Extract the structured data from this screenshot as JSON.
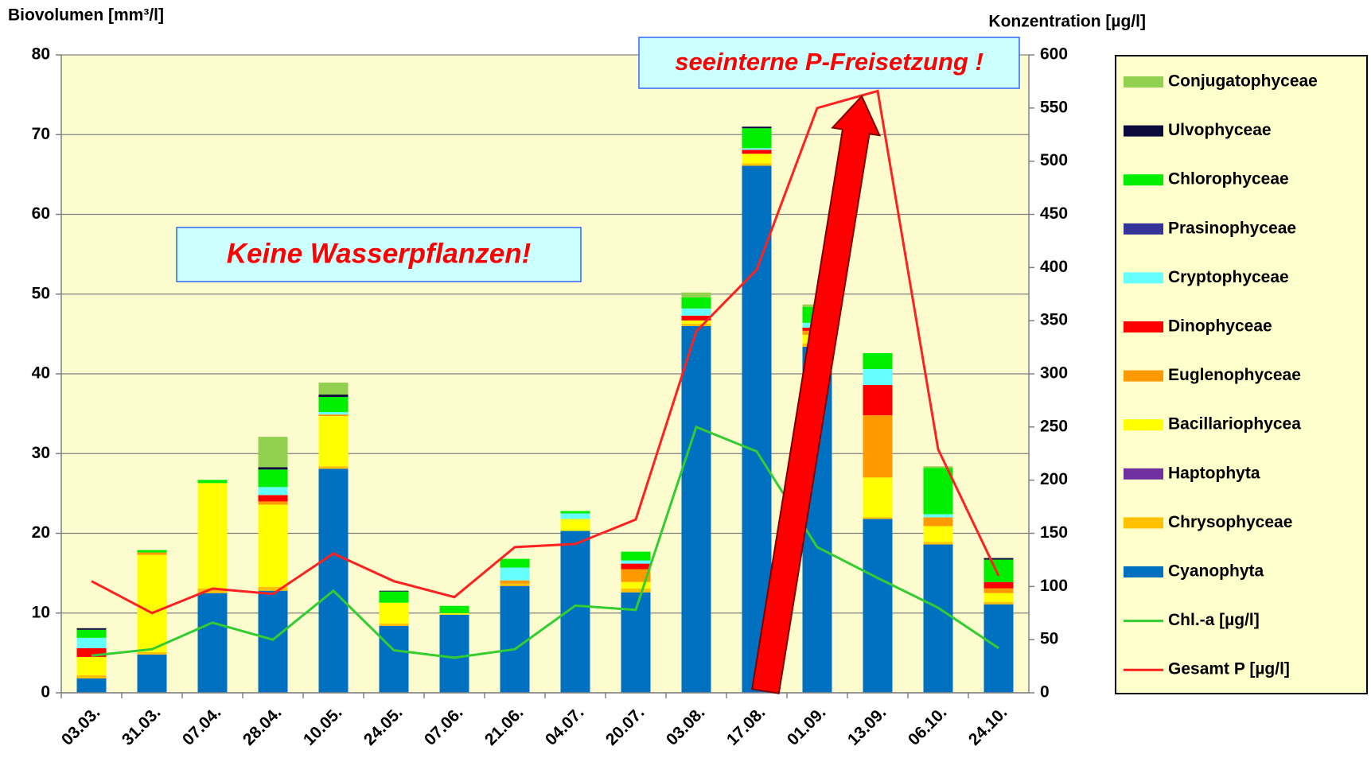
{
  "chart_data": {
    "type": "bar",
    "y_axis_label": "Biovolumen [mm³/l]",
    "y2_axis_label": "Konzentration  [µg/l]",
    "annotations": [
      "Keine Wasserpflanzen!",
      "seeinterne P-Freisetzung !"
    ],
    "categories": [
      "03.03.",
      "31.03.",
      "07.04.",
      "28.04.",
      "10.05.",
      "24.05.",
      "07.06.",
      "21.06.",
      "04.07.",
      "20.07.",
      "03.08.",
      "17.08.",
      "01.09.",
      "13.09.",
      "06.10.",
      "24.10."
    ],
    "ylim": [
      0,
      80
    ],
    "yticks": [
      0,
      10,
      20,
      30,
      40,
      50,
      60,
      70,
      80
    ],
    "y2lim": [
      0,
      600
    ],
    "y2ticks": [
      0,
      50,
      100,
      150,
      200,
      250,
      300,
      350,
      400,
      450,
      500,
      550,
      600
    ],
    "grid": true,
    "stacked": true,
    "legend": "right",
    "series": [
      {
        "name": "Cyanophyta",
        "color": "#0070c0",
        "values": [
          1.8,
          4.8,
          12.5,
          12.8,
          28.1,
          8.4,
          9.8,
          13.4,
          20.3,
          12.6,
          46.0,
          66.1,
          43.4,
          21.8,
          18.6,
          11.1
        ]
      },
      {
        "name": "Chrysophyceae",
        "color": "#ffc000",
        "values": [
          0.4,
          0.3,
          0.6,
          0.5,
          0.3,
          0.3,
          0,
          0.3,
          0,
          0.5,
          0.3,
          0.3,
          0.4,
          0.2,
          0.3,
          0.3
        ]
      },
      {
        "name": "Haptophyta",
        "color": "#7030a0",
        "values": [
          0,
          0,
          0,
          0,
          0,
          0,
          0,
          0,
          0,
          0,
          0,
          0,
          0,
          0,
          0,
          0
        ]
      },
      {
        "name": "Bacillariophycea",
        "color": "#ffff00",
        "values": [
          2.3,
          12.2,
          13.2,
          10.3,
          6.3,
          2.6,
          0.2,
          0,
          1.5,
          0.8,
          0.4,
          1.2,
          1.1,
          5.0,
          2.0,
          1.1
        ]
      },
      {
        "name": "Euglenophyceae",
        "color": "#ff9900",
        "values": [
          0,
          0.3,
          0,
          0.4,
          0.2,
          0,
          0,
          0.4,
          0,
          1.6,
          0,
          0,
          0.5,
          7.8,
          1.1,
          0.6
        ]
      },
      {
        "name": "Dinophyceae",
        "color": "#ff0000",
        "values": [
          1.1,
          0,
          0,
          0.8,
          0,
          0,
          0,
          0,
          0,
          0.7,
          0.6,
          0.5,
          0.4,
          3.8,
          0,
          0.8
        ]
      },
      {
        "name": "Cryptophyceae",
        "color": "#66ffff",
        "values": [
          1.3,
          0,
          0,
          1.0,
          0.3,
          0,
          0,
          1.6,
          0.7,
          0.4,
          0.9,
          0.2,
          0.6,
          2.0,
          0.4,
          0
        ]
      },
      {
        "name": "Prasinophyceae",
        "color": "#333399",
        "values": [
          0,
          0,
          0,
          0,
          0,
          0,
          0,
          0,
          0,
          0,
          0,
          0,
          0,
          0,
          0,
          0
        ]
      },
      {
        "name": "Chlorophyceae",
        "color": "#00ee00",
        "values": [
          1.0,
          0.3,
          0.4,
          2.2,
          1.9,
          1.4,
          0.9,
          1.1,
          0.3,
          1.1,
          1.4,
          2.5,
          2.0,
          2.0,
          5.8,
          2.8
        ]
      },
      {
        "name": "Ulvophyceae",
        "color": "#0a0a3c",
        "values": [
          0.2,
          0,
          0,
          0.3,
          0.3,
          0.1,
          0,
          0,
          0,
          0,
          0,
          0.2,
          0,
          0,
          0,
          0.2
        ]
      },
      {
        "name": "Conjugatophyceae",
        "color": "#92d050",
        "values": [
          0,
          0,
          0,
          3.8,
          1.5,
          0,
          0,
          0,
          0,
          0,
          0.6,
          0,
          0.3,
          0,
          0.2,
          0
        ]
      },
      {
        "name": "Chl.-a [µg/l]",
        "color": "#33cc33",
        "type": "line",
        "axis": "y2",
        "values": [
          35,
          41,
          66,
          50,
          96,
          40,
          33,
          41,
          82,
          78,
          250,
          227,
          137,
          108,
          80,
          42
        ]
      },
      {
        "name": "Gesamt P [µg/l]",
        "color": "#ff2020",
        "type": "line",
        "axis": "y2",
        "values": [
          105,
          75,
          98,
          93,
          131,
          105,
          90,
          137,
          140,
          163,
          340,
          398,
          550,
          566,
          229,
          110
        ]
      }
    ]
  }
}
